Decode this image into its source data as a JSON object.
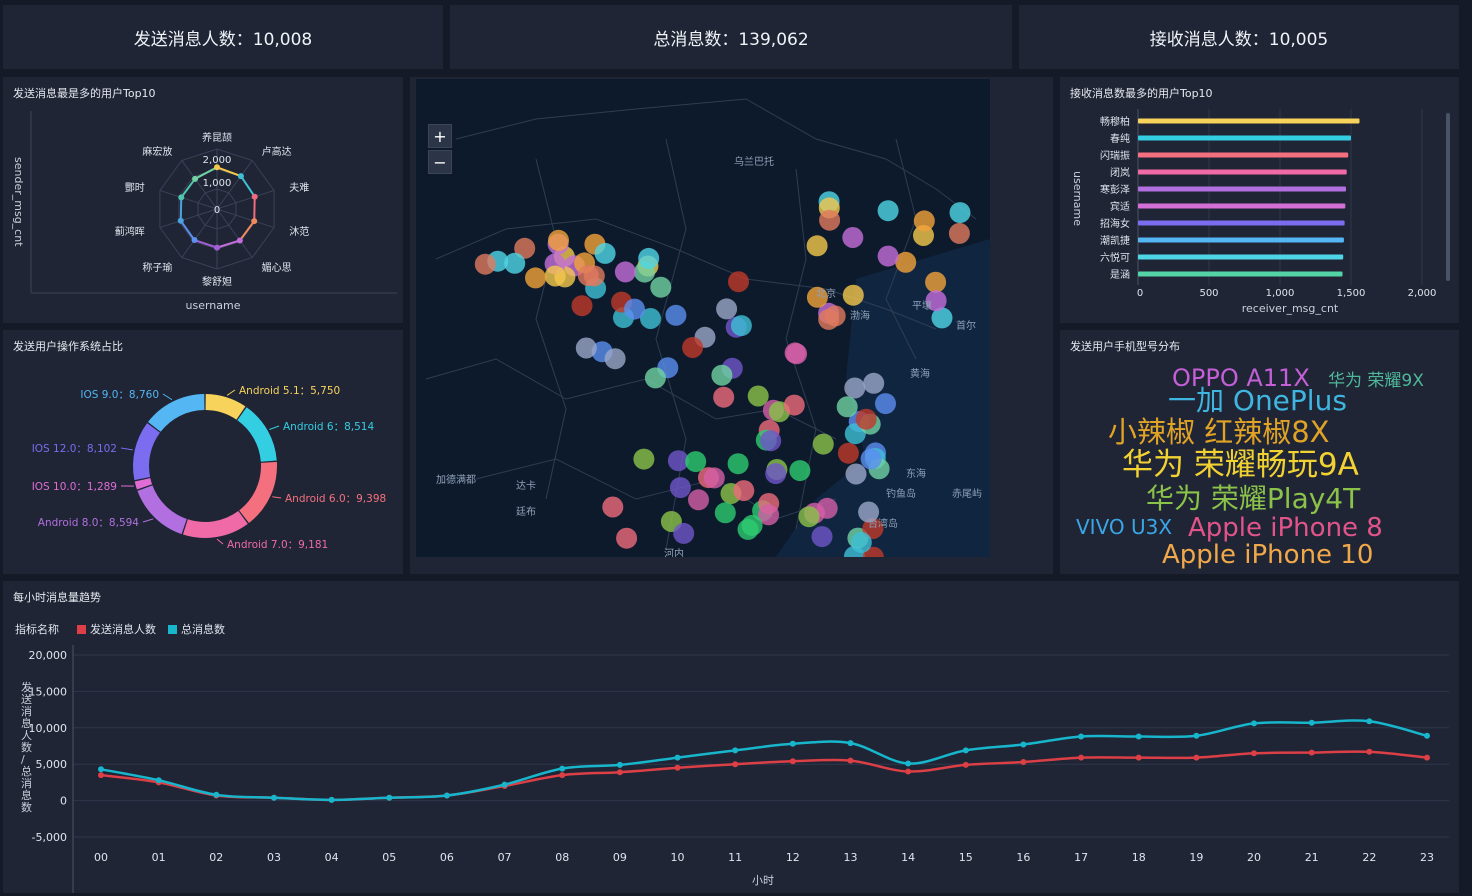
{
  "kpis": {
    "send_users": "发送消息人数：10,008",
    "total_msgs": "总消息数：139,062",
    "recv_users": "接收消息人数：10,005"
  },
  "radar": {
    "title": "发送消息最是多的用户Top10",
    "ylabel": "sender_msg_cnt",
    "xlabel": "username",
    "users": [
      "养昆颉",
      "卢高达",
      "夫难",
      "沐范",
      "媚心思",
      "黎舒妲",
      "称子瑜",
      "蓟鸿晖",
      "酆时",
      "麻宏放"
    ],
    "values": [
      1600,
      1560,
      1520,
      1500,
      1490,
      1480,
      1470,
      1460,
      1440,
      1430
    ],
    "rings": [
      "2,000",
      "1,000",
      "0"
    ],
    "max": 2300,
    "colors": [
      "#f5c84c",
      "#3fbfd6",
      "#ef6b7c",
      "#f08a5d",
      "#c46edb",
      "#a35ed6",
      "#5b8ff0",
      "#4aa3e0",
      "#4fc6b0",
      "#71d3a2"
    ]
  },
  "donut": {
    "title": "发送用户操作系统占比",
    "slices": [
      {
        "label": "Android 5.1：5,750",
        "value": 5750,
        "color": "#f8d35c"
      },
      {
        "label": "Android 6：8,514",
        "value": 8514,
        "color": "#34cee3"
      },
      {
        "label": "Android 6.0：9,398",
        "value": 9398,
        "color": "#f5707e"
      },
      {
        "label": "Android 7.0：9,181",
        "value": 9181,
        "color": "#f06aa8"
      },
      {
        "label": "Android 8.0：8,594",
        "value": 8594,
        "color": "#b16fe0"
      },
      {
        "label": "IOS 10.0：1,289",
        "value": 1289,
        "color": "#e06cd6"
      },
      {
        "label": "IOS 12.0：8,102",
        "value": 8102,
        "color": "#7b6cf0"
      },
      {
        "label": "IOS 9.0：8,760",
        "value": 8760,
        "color": "#54b6f3"
      }
    ]
  },
  "map": {
    "labels": [
      "乌兰巴托",
      "北京",
      "平壤",
      "首尔",
      "渤海",
      "黄海",
      "东海",
      "钓鱼岛",
      "赤尾屿",
      "台湾岛",
      "河内",
      "达卡",
      "加德满都",
      "廷布"
    ],
    "zoom_in": "+",
    "zoom_out": "−"
  },
  "bar": {
    "title": "接收消息数最多的用户Top10",
    "ylabel": "username",
    "xlabel": "receiver_msg_cnt",
    "users": [
      "畅穆柏",
      "春纯",
      "闪瑞振",
      "闭岚",
      "寒彭泽",
      "宾适",
      "招海女",
      "潮凯捷",
      "六悦可",
      "是涵"
    ],
    "values": [
      1560,
      1500,
      1480,
      1470,
      1465,
      1460,
      1455,
      1450,
      1445,
      1440
    ],
    "ticks": [
      "0",
      "500",
      "1,000",
      "1,500",
      "2,000"
    ],
    "max": 2000,
    "colors": [
      "#f8d35c",
      "#34cee3",
      "#f5707e",
      "#f06aa8",
      "#b16fe0",
      "#d46fd6",
      "#7b6cf0",
      "#54b6f3",
      "#4fd6e6",
      "#53d3a6"
    ]
  },
  "wordcloud": {
    "title": "发送用户手机型号分布",
    "words": [
      {
        "text": "OPPO A11X",
        "color": "#c45fd8"
      },
      {
        "text": "华为 荣耀9X",
        "color": "#4fb89a"
      },
      {
        "text": "一加 OnePlus",
        "color": "#3fb6e0"
      },
      {
        "text": "小辣椒 红辣椒8X",
        "color": "#e0a326"
      },
      {
        "text": "华为 荣耀畅玩9A",
        "color": "#f2d132"
      },
      {
        "text": "华为 荣耀Play4T",
        "color": "#8bc34a"
      },
      {
        "text": "VIVO U3X",
        "color": "#3aa6e6"
      },
      {
        "text": "Apple iPhone 8",
        "color": "#e0548a"
      },
      {
        "text": "Apple iPhone 10",
        "color": "#f0a84a"
      }
    ]
  },
  "line": {
    "title": "每小时消息量趋势",
    "legend_title": "指标名称",
    "ylabel": "发送消息人数/总消息数",
    "xlabel": "小时",
    "series_names": [
      "发送消息人数",
      "总消息数"
    ],
    "colors": [
      "#dc3f45",
      "#17b6cc"
    ],
    "yticks": [
      "20,000",
      "15,000",
      "10,000",
      "5,000",
      "0",
      "-5,000"
    ],
    "yvals": [
      20000,
      15000,
      10000,
      5000,
      0,
      -5000
    ]
  },
  "chart_data": {
    "type": "line",
    "title": "每小时消息量趋势",
    "xlabel": "小时",
    "ylabel": "发送消息人数/总消息数",
    "x": [
      "00",
      "01",
      "02",
      "03",
      "04",
      "05",
      "06",
      "07",
      "08",
      "09",
      "10",
      "11",
      "12",
      "13",
      "14",
      "15",
      "16",
      "17",
      "18",
      "19",
      "20",
      "21",
      "22",
      "23"
    ],
    "ylim": [
      -5000,
      20000
    ],
    "legend": "top-left",
    "grid": true,
    "series": [
      {
        "name": "发送消息人数",
        "values": [
          3500,
          2500,
          700,
          400,
          100,
          400,
          700,
          2000,
          3500,
          3900,
          4500,
          5000,
          5400,
          5500,
          4000,
          4900,
          5300,
          5900,
          5900,
          5900,
          6500,
          6600,
          6700,
          5900
        ]
      },
      {
        "name": "总消息数",
        "values": [
          4300,
          2800,
          800,
          400,
          100,
          400,
          700,
          2200,
          4400,
          4900,
          5900,
          6900,
          7800,
          7900,
          5100,
          6900,
          7700,
          8800,
          8800,
          8900,
          10600,
          10700,
          10900,
          8900
        ]
      }
    ]
  }
}
